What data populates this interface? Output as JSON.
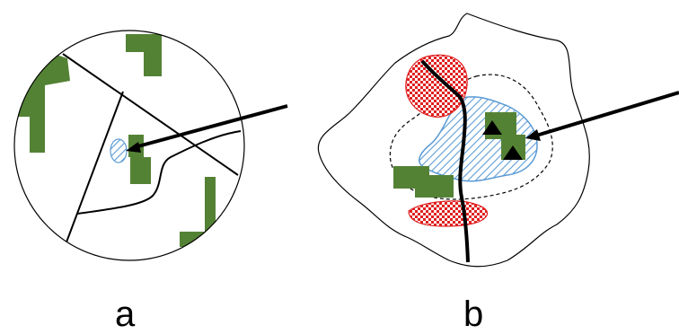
{
  "panels": [
    {
      "id": "a",
      "label": "a"
    },
    {
      "id": "b",
      "label": "b"
    }
  ],
  "colors": {
    "green": "#548235",
    "blue_hatch": "#5b9bd5",
    "blue_fill": "#bdd7ee",
    "red_check": "#e02020",
    "line": "#000000"
  }
}
